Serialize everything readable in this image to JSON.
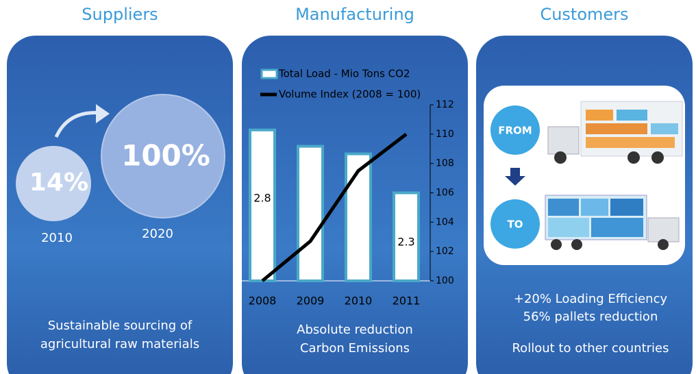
{
  "suppliers": {
    "title": "Suppliers",
    "circles": [
      {
        "label": "14%",
        "year": "2010"
      },
      {
        "label": "100%",
        "year": "2020"
      }
    ],
    "caption": [
      "Sustainable sourcing of",
      "agricultural raw materials"
    ]
  },
  "manufacturing": {
    "title": "Manufacturing",
    "caption": [
      "Absolute reduction",
      "Carbon Emissions"
    ]
  },
  "customers": {
    "title": "Customers",
    "from_label": "FROM",
    "to_label": "TO",
    "caption": [
      "+20% Loading Efficiency",
      "56% pallets reduction",
      "Rollout  to other countries"
    ]
  },
  "chart_data": {
    "type": "bar",
    "categories": [
      "2008",
      "2009",
      "2010",
      "2011"
    ],
    "ylim": [
      1.6,
      3.0
    ],
    "y2lim": [
      100,
      112
    ],
    "y2ticks": [
      100,
      102,
      104,
      106,
      108,
      110,
      112
    ],
    "series": [
      {
        "name": "Total Load - Mio Tons CO2",
        "color": "#ffffff",
        "border": "#4aa8c8",
        "values": [
          2.8,
          2.67,
          2.61,
          2.3
        ],
        "value_labels": [
          "2.8",
          null,
          null,
          "2.3"
        ]
      },
      {
        "name": "Volume Index (2008 = 100)",
        "color": "#000000",
        "axis": "y2",
        "values": [
          100,
          102.7,
          107.5,
          110.0
        ]
      }
    ]
  }
}
